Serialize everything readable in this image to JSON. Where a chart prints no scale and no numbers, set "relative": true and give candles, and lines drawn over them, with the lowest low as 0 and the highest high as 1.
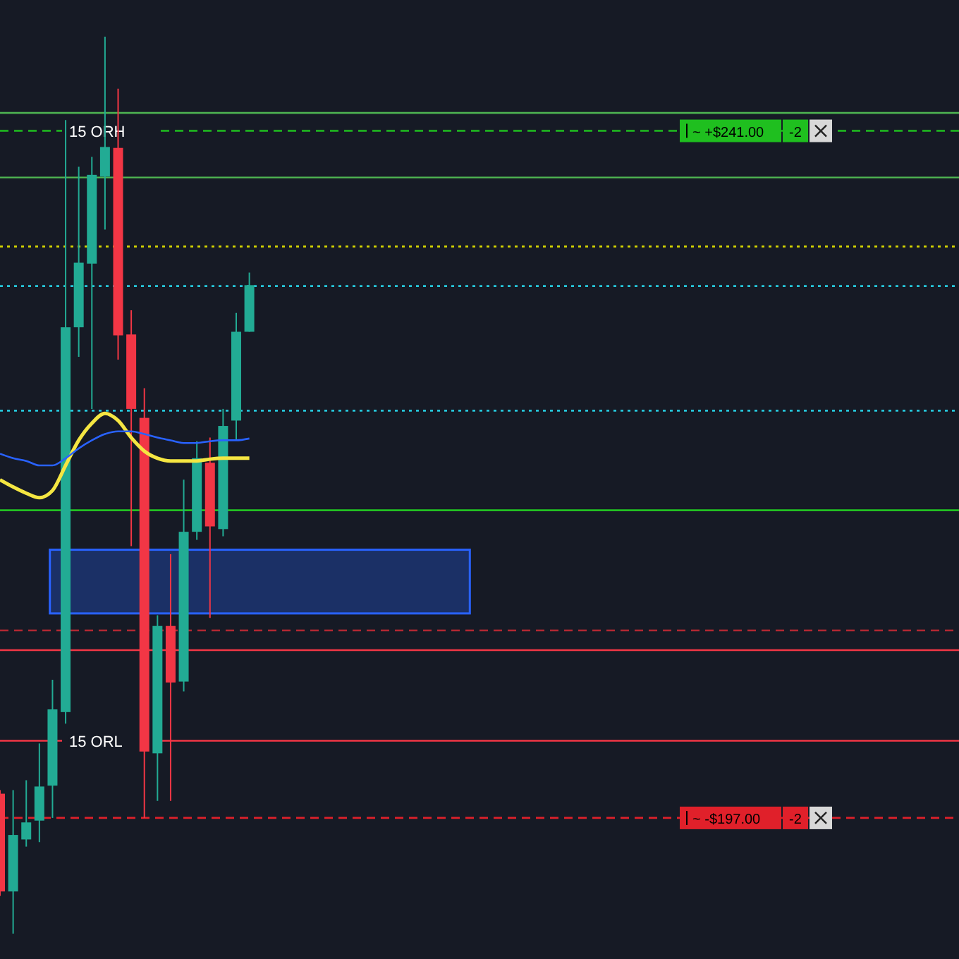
{
  "chart_data": {
    "type": "candlestick",
    "relative": true,
    "grid": false,
    "categories": [
      null,
      null,
      null,
      null,
      null,
      null,
      null,
      null,
      null,
      null,
      null,
      null,
      null,
      null,
      null,
      null,
      null,
      null,
      null,
      null,
      null,
      null,
      null,
      null,
      null,
      null,
      null,
      null,
      null,
      null,
      null,
      null,
      null,
      null,
      null,
      null,
      null,
      null,
      null,
      null,
      null,
      null,
      null,
      null,
      null,
      null,
      null,
      null,
      null,
      null,
      null,
      null,
      null,
      null,
      null,
      null,
      null,
      null,
      null,
      null,
      null,
      null,
      null,
      null,
      null,
      null,
      null,
      null,
      null,
      null,
      null,
      null,
      null
    ],
    "ohlc": [
      [
        0.156,
        0.16,
        0.042,
        0.047
      ],
      [
        0.047,
        0.16,
        0,
        0.11
      ],
      [
        0.105,
        0.171,
        0.097,
        0.124
      ],
      [
        0.126,
        0.212,
        0.102,
        0.164
      ],
      [
        0.165,
        0.283,
        0.129,
        0.25
      ],
      [
        0.247,
        0.907,
        0.234,
        0.676
      ],
      [
        0.676,
        0.855,
        0.643,
        0.748
      ],
      [
        0.747,
        0.866,
        0.585,
        0.846
      ],
      [
        0.844,
        1,
        0.785,
        0.877
      ],
      [
        0.876,
        0.942,
        0.64,
        0.667
      ],
      [
        0.668,
        0.695,
        0.432,
        0.585
      ],
      [
        0.575,
        0.608,
        0.129,
        0.203
      ],
      [
        0.201,
        0.355,
        0.148,
        0.343
      ],
      [
        0.343,
        0.423,
        0.148,
        0.28
      ],
      [
        0.281,
        0.506,
        0.27,
        0.448
      ],
      [
        0.448,
        0.549,
        0.439,
        0.53
      ],
      [
        0.525,
        0.553,
        0.352,
        0.454
      ],
      [
        0.451,
        0.585,
        0.443,
        0.566
      ],
      [
        0.572,
        0.692,
        0.55,
        0.671
      ],
      [
        0.671,
        0.737,
        0.671,
        0.723
      ],
      null,
      null,
      null,
      null,
      null,
      null,
      null,
      null,
      null,
      null,
      null,
      null,
      null,
      null,
      null,
      null,
      null,
      null,
      null,
      null,
      null,
      null,
      null,
      null,
      null,
      null,
      null,
      null,
      null,
      null,
      null,
      null,
      null,
      null,
      null,
      null,
      null,
      null,
      null,
      null,
      null,
      null,
      null,
      null,
      null,
      null,
      null,
      null,
      null,
      null,
      null,
      null,
      null
    ],
    "colors": [
      "#f23645",
      "#22ab94",
      "#22ab94",
      "#22ab94",
      "#22ab94",
      "#22ab94",
      "#22ab94",
      "#22ab94",
      "#22ab94",
      "#f23645",
      "#f23645",
      "#f23645",
      "#22ab94",
      "#f23645",
      "#22ab94",
      "#22ab94",
      "#f23645",
      "#22ab94",
      "#22ab94",
      "#22ab94",
      null,
      null,
      null,
      null,
      null,
      null,
      null,
      null,
      null,
      null,
      null,
      null,
      null,
      null,
      null,
      null,
      null,
      null,
      null,
      null,
      null,
      null,
      null,
      null,
      null,
      null,
      null,
      null,
      null,
      null,
      null,
      null,
      null,
      null,
      null,
      null,
      null,
      null,
      null,
      null,
      null,
      null,
      null,
      null,
      null,
      null,
      null,
      null,
      null,
      null,
      null,
      null,
      null
    ],
    "series": [
      {
        "type": "line",
        "color": "#f5e642",
        "values": [
          0.506,
          0.498,
          0.491,
          0.486,
          0.494,
          0.522,
          0.55,
          0.569,
          0.58,
          0.572,
          0.553,
          0.538,
          0.53,
          0.527,
          0.527,
          0.527,
          0.529,
          0.53,
          0.53,
          0.53,
          null,
          null,
          null,
          null,
          null,
          null,
          null,
          null,
          null,
          null,
          null,
          null,
          null,
          null,
          null,
          null,
          null,
          null,
          null,
          null,
          null,
          null,
          null,
          null,
          null,
          null,
          null,
          null,
          null,
          null,
          null,
          null,
          null,
          null,
          null,
          null,
          null,
          null,
          null,
          null,
          null,
          null,
          null,
          null,
          null,
          null,
          null,
          null,
          null,
          null,
          null,
          null,
          null
        ]
      },
      {
        "type": "line",
        "color": "#2962ff",
        "values": [
          0.535,
          0.53,
          0.527,
          0.522,
          0.522,
          0.53,
          0.541,
          0.55,
          0.557,
          0.56,
          0.56,
          0.557,
          0.553,
          0.55,
          0.547,
          0.547,
          0.549,
          0.55,
          0.55,
          0.552,
          null,
          null,
          null,
          null,
          null,
          null,
          null,
          null,
          null,
          null,
          null,
          null,
          null,
          null,
          null,
          null,
          null,
          null,
          null,
          null,
          null,
          null,
          null,
          null,
          null,
          null,
          null,
          null,
          null,
          null,
          null,
          null,
          null,
          null,
          null,
          null,
          null,
          null,
          null,
          null,
          null,
          null,
          null,
          null,
          null,
          null,
          null,
          null,
          null,
          null,
          null,
          null,
          null
        ]
      }
    ],
    "ref_lines": [
      {
        "axis": "y",
        "value": 0.915,
        "color": "#4caf50",
        "line_style": "solid"
      },
      {
        "axis": "y",
        "value": 0.895,
        "label": "15 ORH",
        "color": "#1fbf1f",
        "line_style": "dashed"
      },
      {
        "axis": "y",
        "value": 0.843,
        "color": "#4caf50",
        "line_style": "solid"
      },
      {
        "axis": "y",
        "value": 0.766,
        "color": "#d4d400",
        "line_style": "dotted"
      },
      {
        "axis": "y",
        "value": 0.722,
        "color": "#26c6da",
        "line_style": "dotted"
      },
      {
        "axis": "y",
        "value": 0.583,
        "color": "#26c6da",
        "line_style": "dotted"
      },
      {
        "axis": "y",
        "value": 0.472,
        "color": "#22c022",
        "line_style": "solid"
      },
      {
        "axis": "y",
        "value": 0.338,
        "color": "#b22833",
        "line_style": "dashed"
      },
      {
        "axis": "y",
        "value": 0.316,
        "color": "#f23645",
        "line_style": "solid"
      },
      {
        "axis": "y",
        "value": 0.215,
        "label": "15 ORL",
        "color": "#f23645",
        "line_style": "solid"
      },
      {
        "axis": "y",
        "value": 0.129,
        "color": "#e0202a",
        "line_style": "dashed"
      }
    ],
    "bands": [
      {
        "axis": "y",
        "from": 0.357,
        "to": 0.428,
        "color": "#2962ff"
      }
    ],
    "annotations": [
      {
        "text": "~ +$241.00",
        "y": 0.895
      },
      {
        "text": "-2",
        "y": 0.895
      },
      {
        "text": "~ -$197.00",
        "y": 0.129
      },
      {
        "text": "-2",
        "y": 0.129
      }
    ]
  }
}
